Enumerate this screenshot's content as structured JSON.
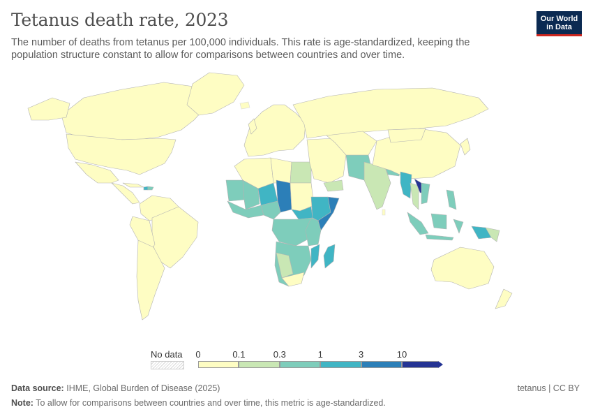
{
  "title": "Tetanus death rate, 2023",
  "subtitle": "The number of deaths from tetanus per 100,000 individuals. This rate is age-standardized, keeping the population structure constant to allow for comparisons between countries and over time.",
  "logo": {
    "line1": "Our World",
    "line2": "in Data"
  },
  "legend": {
    "no_data_label": "No data",
    "ticks": [
      "0",
      "0.1",
      "0.3",
      "1",
      "3",
      "10"
    ],
    "bins": [
      {
        "from": 0,
        "to": 0.1,
        "color": "#fefdc3"
      },
      {
        "from": 0.1,
        "to": 0.3,
        "color": "#c9e7b4"
      },
      {
        "from": 0.3,
        "to": 1,
        "color": "#7ecdbb"
      },
      {
        "from": 1,
        "to": 3,
        "color": "#40b5c4"
      },
      {
        "from": 3,
        "to": 10,
        "color": "#2c7fb8"
      },
      {
        "from": 10,
        "to": null,
        "color": "#253494"
      }
    ]
  },
  "colors": {
    "land_low": "#fefdc3",
    "border": "#b3b3b3"
  },
  "footer": {
    "source_label": "Data source:",
    "source_text": "IHME, Global Burden of Disease (2025)",
    "note_label": "Note:",
    "note_text": "To allow for comparisons between countries and over time, this metric is age-standardized.",
    "right_text": "tetanus | CC BY"
  }
}
